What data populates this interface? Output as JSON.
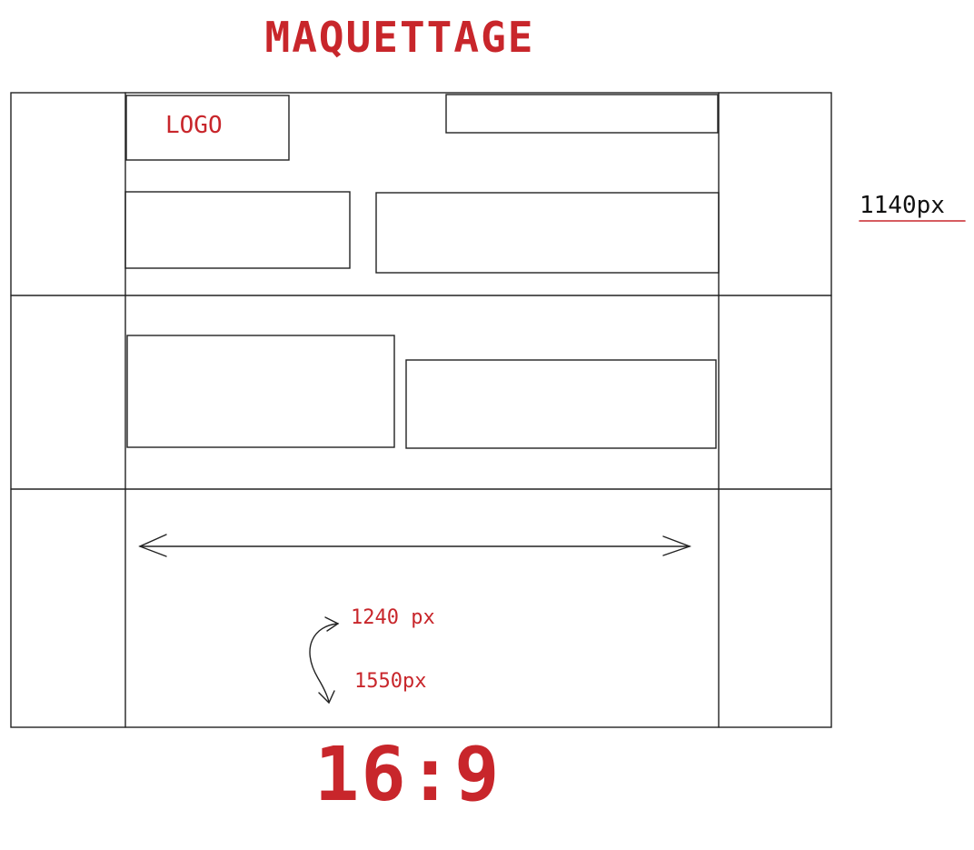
{
  "mockup": {
    "title": "MAQUETTAGE",
    "logo_label": "LOGO",
    "content_width_label": "1140px",
    "width_option_1": "1240 px",
    "width_option_2": "1550px",
    "aspect_ratio": "16:9"
  },
  "colors": {
    "annotation": "#c8262b",
    "sketch_line": "#222222"
  }
}
